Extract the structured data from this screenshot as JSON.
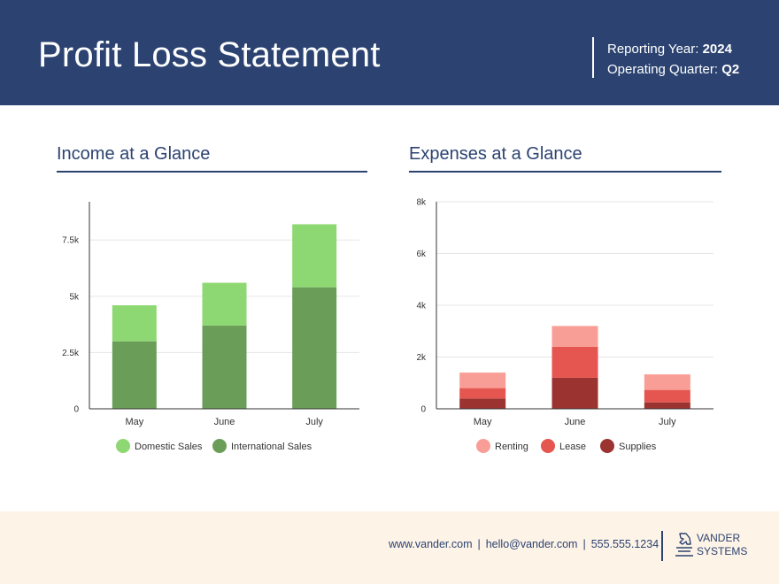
{
  "header": {
    "title": "Profit Loss Statement",
    "year_label": "Reporting Year:",
    "year_value": "2024",
    "quarter_label": "Operating Quarter:",
    "quarter_value": "Q2"
  },
  "income": {
    "title": "Income at a Glance"
  },
  "expenses": {
    "title": "Expenses at a Glance"
  },
  "chart_data": [
    {
      "type": "bar",
      "stacked": true,
      "title": "Income at a Glance",
      "categories": [
        "May",
        "June",
        "July"
      ],
      "series": [
        {
          "name": "International Sales",
          "values": [
            3000,
            3700,
            5400
          ],
          "color": "#6a9e58"
        },
        {
          "name": "Domestic Sales",
          "values": [
            1600,
            1900,
            2800
          ],
          "color": "#8ed873"
        }
      ],
      "legend_order": [
        "Domestic Sales",
        "International Sales"
      ],
      "ylim": [
        0,
        9200
      ],
      "yticks": [
        0,
        2500,
        5000,
        7500
      ],
      "ytick_labels": [
        "0",
        "2.5k",
        "5k",
        "7.5k"
      ],
      "grid": true,
      "legend_position": "bottom"
    },
    {
      "type": "bar",
      "stacked": true,
      "title": "Expenses at a Glance",
      "categories": [
        "May",
        "June",
        "July"
      ],
      "series": [
        {
          "name": "Supplies",
          "values": [
            400,
            1200,
            250
          ],
          "color": "#9b3431"
        },
        {
          "name": "Lease",
          "values": [
            400,
            1200,
            480
          ],
          "color": "#e4564f"
        },
        {
          "name": "Renting",
          "values": [
            600,
            800,
            600
          ],
          "color": "#f99e96"
        }
      ],
      "legend_order": [
        "Renting",
        "Lease",
        "Supplies"
      ],
      "ylim": [
        0,
        8000
      ],
      "yticks": [
        0,
        2000,
        4000,
        6000,
        8000
      ],
      "ytick_labels": [
        "0",
        "2k",
        "4k",
        "6k",
        "8k"
      ],
      "grid": true,
      "legend_position": "bottom"
    }
  ],
  "footer": {
    "website": "www.vander.com",
    "email": "hello@vander.com",
    "phone": "555.555.1234",
    "logo_line1": "VANDER",
    "logo_line2": "SYSTEMS",
    "logo_icon": "chess-knight-icon"
  },
  "colors": {
    "brand_navy": "#2c4371",
    "footer_bg": "#fdf3e7"
  }
}
